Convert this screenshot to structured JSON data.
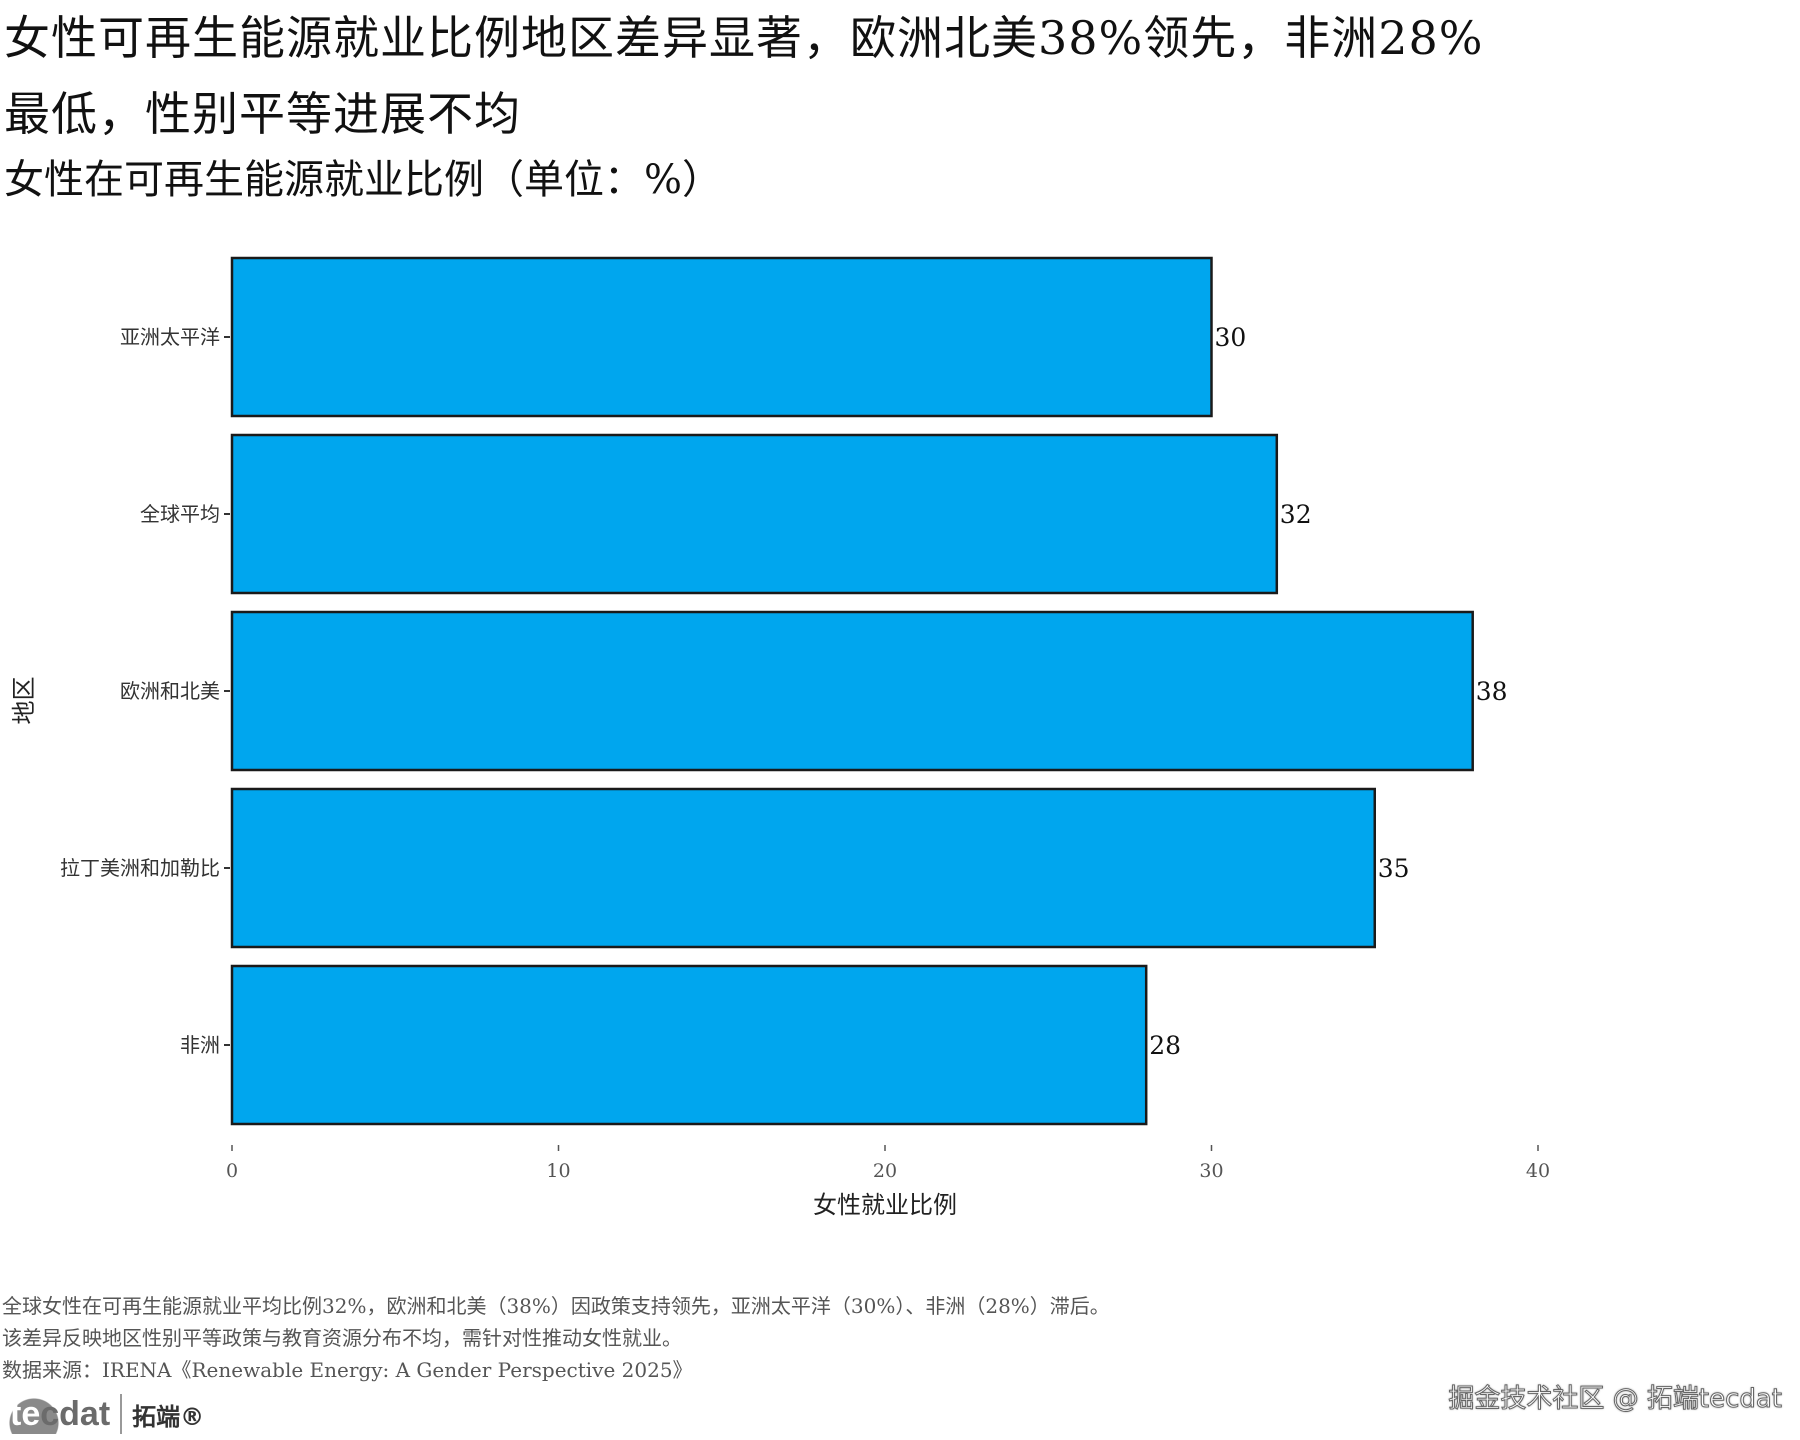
{
  "header": {
    "title": "女性可再生能源就业比例地区差异显著，欧洲北美38%领先，非洲28%最低，性别平等进展不均",
    "subtitle": "女性在可再生能源就业比例（单位：%）"
  },
  "chart_data": {
    "type": "bar",
    "orientation": "horizontal",
    "categories": [
      "亚洲太平洋",
      "全球平均",
      "欧洲和北美",
      "拉丁美洲和加勒比",
      "非洲"
    ],
    "values": [
      30,
      32,
      38,
      35,
      28
    ],
    "data_labels": [
      "30",
      "32",
      "38",
      "35",
      "28"
    ],
    "xlabel": "女性就业比例",
    "ylabel": "地区",
    "xlim": [
      0,
      40
    ],
    "xticks": [
      "0",
      "10",
      "20",
      "30",
      "40"
    ],
    "bar_color": "#00A6EE",
    "bar_border_color": "#1a1a1a",
    "grid": false
  },
  "notes": {
    "line1": "全球女性在可再生能源就业平均比例32%，欧洲和北美（38%）因政策支持领先，亚洲太平洋（30%）、非洲（28%）滞后。",
    "line2": "该差异反映地区性别平等政策与教育资源分布不均，需针对性推动女性就业。",
    "source": "数据来源：IRENA《Renewable Energy: A Gender Perspective 2025》"
  },
  "logo": {
    "mark_left": "te",
    "mark_right": "cdat",
    "text": "拓端®"
  },
  "watermark": "掘金技术社区 @ 拓端tecdat"
}
